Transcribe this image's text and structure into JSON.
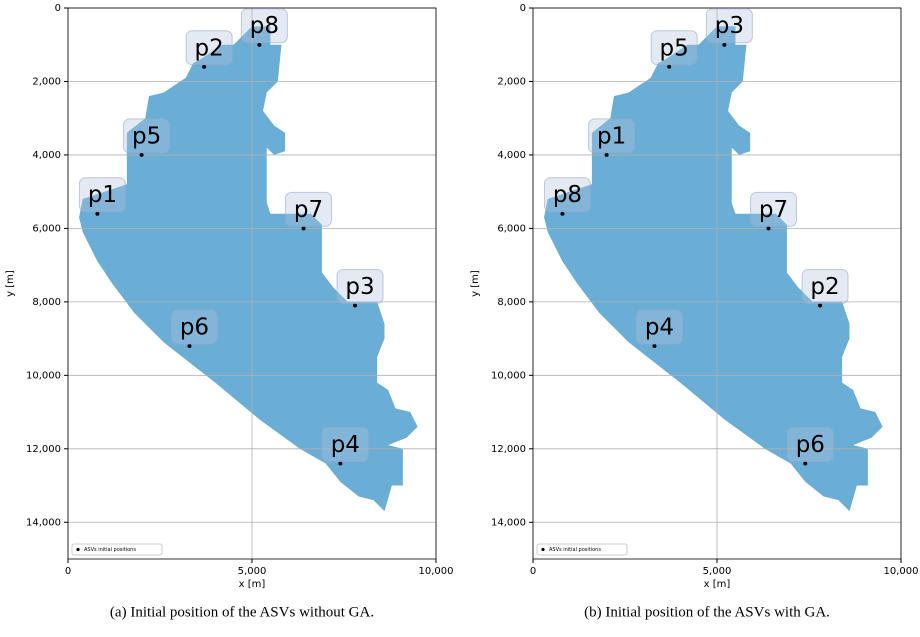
{
  "chart_data": [
    {
      "type": "scatter",
      "caption": "(a)  Initial position of the ASVs without GA.",
      "xlabel": "x [m]",
      "ylabel": "y [m]",
      "xlim": [
        0,
        10000
      ],
      "ylim": [
        0,
        15000
      ],
      "invert_y": true,
      "grid": true,
      "legend": "lower left",
      "xticks": [
        0,
        {
          "value": 5000,
          "label": "5,000"
        },
        {
          "value": 10000,
          "label": "10,000"
        }
      ],
      "yticks": [
        0,
        {
          "value": 2000,
          "label": "2,000"
        },
        {
          "value": 4000,
          "label": "4,000"
        },
        {
          "value": 6000,
          "label": "6,000"
        },
        {
          "value": 8000,
          "label": "8,000"
        },
        {
          "value": 10000,
          "label": "10,000"
        },
        {
          "value": 12000,
          "label": "12,000"
        },
        {
          "value": 14000,
          "label": "14,000"
        }
      ],
      "series": [
        {
          "name": "ASVs initial positions",
          "color": "#000000",
          "labels": [
            "p1",
            "p2",
            "p3",
            "p4",
            "p5",
            "p6",
            "p7",
            "p8"
          ],
          "x": [
            800,
            3700,
            7800,
            7400,
            2000,
            3300,
            6400,
            5200
          ],
          "y": [
            5600,
            1600,
            8100,
            12400,
            4000,
            9200,
            6000,
            1000
          ]
        }
      ]
    },
    {
      "type": "scatter",
      "caption": "(b)  Initial position of the ASVs with GA.",
      "xlabel": "x [m]",
      "ylabel": "y [m]",
      "xlim": [
        0,
        10000
      ],
      "ylim": [
        0,
        15000
      ],
      "invert_y": true,
      "grid": true,
      "legend": "lower left",
      "xticks": [
        0,
        {
          "value": 5000,
          "label": "5,000"
        },
        {
          "value": 10000,
          "label": "10,000"
        }
      ],
      "yticks": [
        0,
        {
          "value": 2000,
          "label": "2,000"
        },
        {
          "value": 4000,
          "label": "4,000"
        },
        {
          "value": 6000,
          "label": "6,000"
        },
        {
          "value": 8000,
          "label": "8,000"
        },
        {
          "value": 10000,
          "label": "10,000"
        },
        {
          "value": 12000,
          "label": "12,000"
        },
        {
          "value": 14000,
          "label": "14,000"
        }
      ],
      "series": [
        {
          "name": "ASVs initial positions",
          "color": "#000000",
          "labels": [
            "p1",
            "p2",
            "p3",
            "p4",
            "p5",
            "p6",
            "p7",
            "p8"
          ],
          "x": [
            2000,
            7800,
            5200,
            3300,
            3700,
            7400,
            6400,
            800
          ],
          "y": [
            4000,
            8100,
            1000,
            9200,
            1600,
            12400,
            6000,
            5600
          ]
        }
      ]
    }
  ]
}
